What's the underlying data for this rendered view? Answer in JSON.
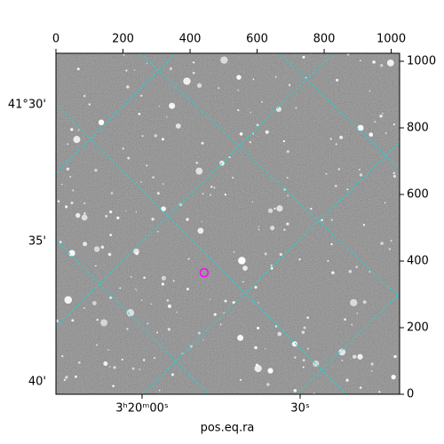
{
  "chart_data": {
    "type": "image",
    "xlabel": "pos.eq.ra",
    "xlim": [
      0,
      1025
    ],
    "ylim": [
      0,
      1024
    ],
    "xticks": [
      0,
      200,
      400,
      600,
      800,
      1000
    ],
    "yticks": [
      0,
      200,
      400,
      600,
      800,
      1000
    ],
    "ra_ticks": [
      "3ʰ20ᵐ00ˢ",
      "30ˢ"
    ],
    "dec_ticks": [
      "41°30'",
      "35'",
      "40'"
    ],
    "marker": {
      "x": [
        442
      ],
      "y": [
        365
      ],
      "color": "#ff00ff"
    }
  }
}
